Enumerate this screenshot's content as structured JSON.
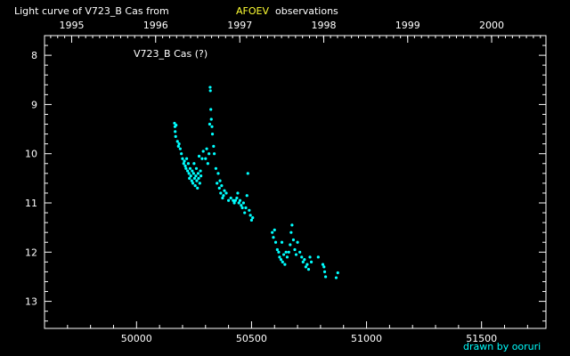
{
  "header": {
    "prefix": "Light curve of V723_B Cas from",
    "source": "AFOEV",
    "suffix": "observations"
  },
  "credit": "drawn by ooruri",
  "colors": {
    "background": "#000000",
    "axes": "#ffffff",
    "text": "#ffffff",
    "source": "#ffff33",
    "points": "#00ffff",
    "credit": "#00ffff"
  },
  "chart_data": {
    "type": "scatter",
    "title": "V723_B Cas (?)",
    "xlabel": "",
    "ylabel": "",
    "xlim": [
      49600,
      51780
    ],
    "ylim": [
      13.55,
      7.6
    ],
    "y_inverted": true,
    "grid": false,
    "legend": "none",
    "x_ticks": [
      {
        "value": 50000,
        "label": "50000"
      },
      {
        "value": 50500,
        "label": "50500"
      },
      {
        "value": 51000,
        "label": "51000"
      },
      {
        "value": 51500,
        "label": "51500"
      }
    ],
    "y_ticks": [
      {
        "value": 8,
        "label": "8"
      },
      {
        "value": 9,
        "label": "9"
      },
      {
        "value": 10,
        "label": "10"
      },
      {
        "value": 11,
        "label": "11"
      },
      {
        "value": 12,
        "label": "12"
      },
      {
        "value": 13,
        "label": "13"
      }
    ],
    "top_axis": {
      "labels": [
        "1995",
        "1996",
        "1997",
        "1998",
        "1999",
        "2000"
      ],
      "positions": [
        49718,
        50083,
        50449,
        50814,
        51179,
        51544
      ]
    },
    "series": [
      {
        "points": [
          [
            50165,
            9.38
          ],
          [
            50167,
            9.45
          ],
          [
            50168,
            9.55
          ],
          [
            50170,
            9.65
          ],
          [
            50172,
            9.42
          ],
          [
            50178,
            9.75
          ],
          [
            50182,
            9.85
          ],
          [
            50185,
            9.8
          ],
          [
            50190,
            9.9
          ],
          [
            50195,
            10.0
          ],
          [
            50200,
            10.1
          ],
          [
            50205,
            10.2
          ],
          [
            50208,
            10.15
          ],
          [
            50212,
            10.25
          ],
          [
            50215,
            10.3
          ],
          [
            50218,
            10.1
          ],
          [
            50222,
            10.35
          ],
          [
            50225,
            10.2
          ],
          [
            50228,
            10.4
          ],
          [
            50230,
            10.5
          ],
          [
            50233,
            10.3
          ],
          [
            50236,
            10.45
          ],
          [
            50240,
            10.55
          ],
          [
            50242,
            10.35
          ],
          [
            50245,
            10.6
          ],
          [
            50248,
            10.4
          ],
          [
            50250,
            10.2
          ],
          [
            50252,
            10.5
          ],
          [
            50255,
            10.65
          ],
          [
            50258,
            10.45
          ],
          [
            50260,
            10.3
          ],
          [
            50262,
            10.55
          ],
          [
            50265,
            10.7
          ],
          [
            50268,
            10.4
          ],
          [
            50270,
            10.5
          ],
          [
            50272,
            10.05
          ],
          [
            50275,
            10.6
          ],
          [
            50278,
            10.35
          ],
          [
            50280,
            10.45
          ],
          [
            50285,
            10.1
          ],
          [
            50290,
            9.95
          ],
          [
            50300,
            10.1
          ],
          [
            50305,
            9.9
          ],
          [
            50310,
            10.2
          ],
          [
            50315,
            10.0
          ],
          [
            50318,
            9.4
          ],
          [
            50320,
            8.65
          ],
          [
            50321,
            8.72
          ],
          [
            50323,
            9.1
          ],
          [
            50325,
            9.3
          ],
          [
            50328,
            9.45
          ],
          [
            50330,
            9.6
          ],
          [
            50335,
            9.85
          ],
          [
            50338,
            10.0
          ],
          [
            50345,
            10.3
          ],
          [
            50350,
            10.6
          ],
          [
            50355,
            10.4
          ],
          [
            50360,
            10.7
          ],
          [
            50363,
            10.55
          ],
          [
            50366,
            10.8
          ],
          [
            50370,
            10.65
          ],
          [
            50374,
            10.9
          ],
          [
            50378,
            10.85
          ],
          [
            50382,
            10.75
          ],
          [
            50390,
            10.8
          ],
          [
            50400,
            10.95
          ],
          [
            50410,
            10.9
          ],
          [
            50420,
            10.95
          ],
          [
            50425,
            11.0
          ],
          [
            50430,
            10.95
          ],
          [
            50436,
            10.9
          ],
          [
            50440,
            10.8
          ],
          [
            50445,
            11.0
          ],
          [
            50450,
            10.95
          ],
          [
            50455,
            11.05
          ],
          [
            50460,
            11.1
          ],
          [
            50465,
            11.0
          ],
          [
            50470,
            11.2
          ],
          [
            50475,
            11.1
          ],
          [
            50480,
            10.85
          ],
          [
            50484,
            10.4
          ],
          [
            50490,
            11.15
          ],
          [
            50495,
            11.25
          ],
          [
            50500,
            11.35
          ],
          [
            50505,
            11.3
          ],
          [
            50590,
            11.6
          ],
          [
            50595,
            11.7
          ],
          [
            50600,
            11.55
          ],
          [
            50605,
            11.8
          ],
          [
            50612,
            11.95
          ],
          [
            50618,
            12.0
          ],
          [
            50622,
            12.1
          ],
          [
            50628,
            12.15
          ],
          [
            50632,
            11.8
          ],
          [
            50635,
            12.2
          ],
          [
            50640,
            12.05
          ],
          [
            50645,
            12.25
          ],
          [
            50650,
            12.0
          ],
          [
            50655,
            12.1
          ],
          [
            50662,
            12.0
          ],
          [
            50668,
            11.85
          ],
          [
            50672,
            11.6
          ],
          [
            50676,
            11.45
          ],
          [
            50682,
            11.75
          ],
          [
            50688,
            11.95
          ],
          [
            50694,
            12.05
          ],
          [
            50700,
            11.8
          ],
          [
            50710,
            12.0
          ],
          [
            50718,
            12.1
          ],
          [
            50724,
            12.2
          ],
          [
            50730,
            12.15
          ],
          [
            50736,
            12.3
          ],
          [
            50742,
            12.25
          ],
          [
            50748,
            12.35
          ],
          [
            50754,
            12.1
          ],
          [
            50760,
            12.2
          ],
          [
            50790,
            12.1
          ],
          [
            50810,
            12.25
          ],
          [
            50815,
            12.3
          ],
          [
            50818,
            12.4
          ],
          [
            50822,
            12.5
          ],
          [
            50868,
            12.52
          ],
          [
            50875,
            12.42
          ]
        ]
      }
    ]
  }
}
